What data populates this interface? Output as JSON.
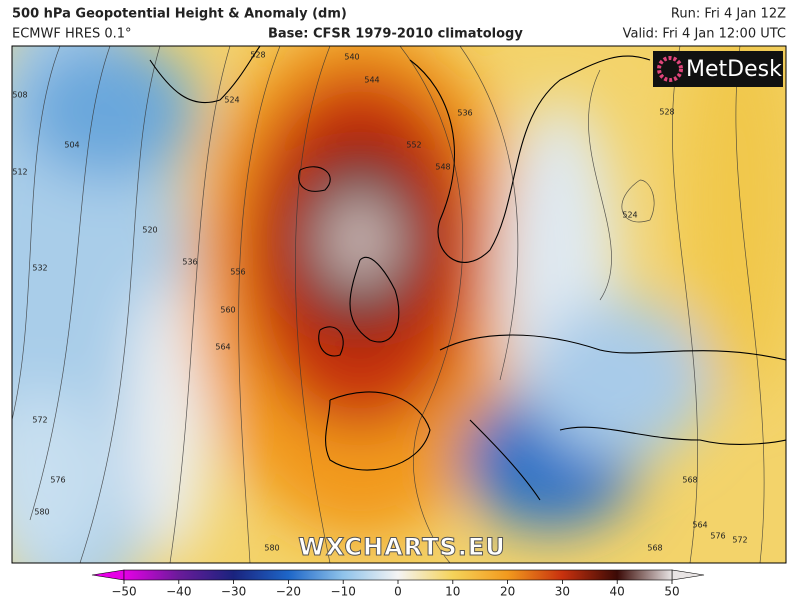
{
  "header": {
    "title": "500 hPa Geopotential Height & Anomaly (dm)",
    "model": "ECMWF HRES 0.1°",
    "base": "Base: CFSR 1979-2010 climatology",
    "run": "Run: Fri 4 Jan 12Z",
    "valid": "Valid: Fri 4 Jan 12:00 UTC"
  },
  "logo": "MetDesk",
  "watermark": "WXCHARTS.EU",
  "contour_labels": [
    508,
    504,
    512,
    532,
    520,
    572,
    576,
    580,
    580,
    524,
    528,
    536,
    556,
    560,
    564,
    540,
    544,
    552,
    548,
    536,
    528,
    524,
    568,
    564,
    572,
    568,
    576
  ],
  "colorbar": {
    "lim": [
      -50,
      50
    ],
    "ticks": [
      {
        "value": -50,
        "label": "−50"
      },
      {
        "value": -40,
        "label": "−40"
      },
      {
        "value": -30,
        "label": "−30"
      },
      {
        "value": -20,
        "label": "−20"
      },
      {
        "value": -10,
        "label": "−10"
      },
      0,
      10,
      20,
      30,
      40,
      50
    ]
  }
}
